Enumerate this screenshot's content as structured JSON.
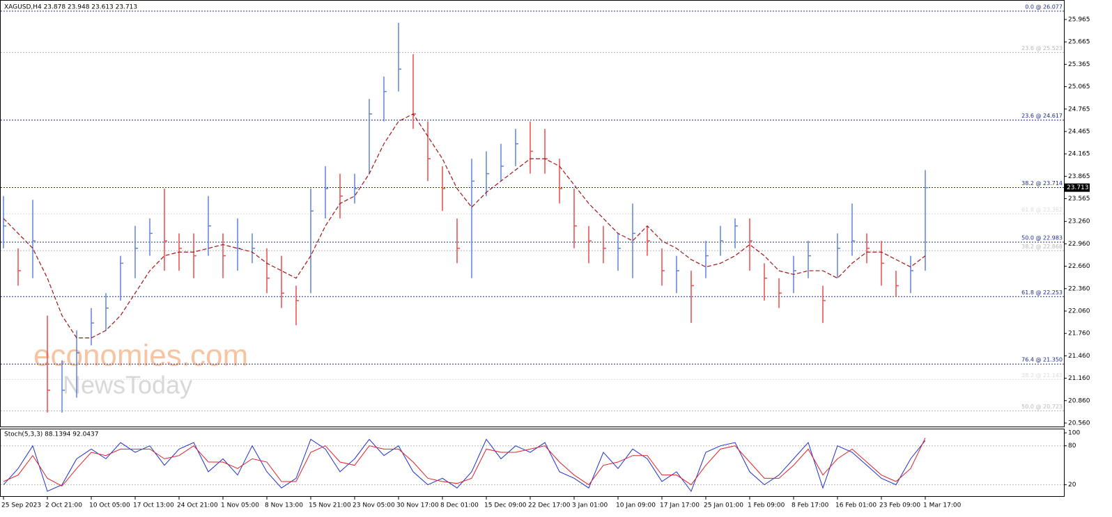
{
  "chart_data": [
    {
      "type": "ohlc",
      "title": "XAGUSD,H4 23.878 23.948 23.613 23.713",
      "high": [
        23.6,
        22.9,
        23.55,
        22.0,
        21.4,
        21.8,
        22.1,
        22.3,
        22.8,
        23.2,
        23.3,
        23.7,
        23.1,
        23.1,
        23.6,
        23.1,
        23.3,
        23.1,
        22.9,
        22.8,
        22.4,
        23.7,
        24.0,
        23.9,
        23.9,
        24.9,
        25.2,
        25.92,
        25.5,
        24.6,
        24.0,
        23.3,
        24.1,
        24.2,
        24.3,
        24.5,
        24.6,
        24.5,
        24.1,
        23.7,
        23.2,
        23.2,
        23.1,
        23.5,
        23.2,
        22.9,
        22.8,
        22.6,
        23.0,
        23.2,
        23.3,
        23.3,
        22.7,
        22.5,
        22.8,
        23.0,
        22.4,
        23.1,
        23.5,
        23.1,
        23.0,
        22.6,
        22.8,
        23.948
      ],
      "low": [
        22.9,
        22.4,
        22.5,
        20.7,
        20.7,
        20.9,
        21.6,
        21.8,
        22.2,
        22.5,
        22.8,
        22.6,
        22.6,
        22.5,
        22.8,
        22.5,
        22.6,
        22.7,
        22.3,
        22.1,
        21.87,
        22.3,
        23.3,
        23.3,
        23.5,
        23.9,
        24.6,
        25.0,
        24.5,
        23.8,
        23.4,
        22.7,
        22.5,
        23.6,
        23.8,
        24.0,
        23.9,
        23.9,
        23.5,
        22.9,
        22.7,
        22.7,
        22.6,
        22.5,
        22.8,
        22.4,
        22.3,
        21.9,
        22.5,
        22.8,
        22.9,
        22.6,
        22.2,
        22.1,
        22.3,
        22.5,
        21.9,
        22.5,
        22.8,
        22.7,
        22.4,
        22.25,
        22.3,
        22.6
      ],
      "close": [
        23.2,
        22.6,
        23.0,
        21.0,
        21.0,
        21.5,
        21.9,
        22.1,
        22.7,
        22.9,
        23.1,
        23.0,
        22.9,
        22.8,
        23.2,
        22.8,
        22.9,
        22.9,
        22.5,
        22.3,
        22.2,
        23.4,
        23.7,
        23.6,
        23.7,
        24.7,
        25.0,
        25.3,
        24.7,
        24.1,
        23.7,
        22.9,
        23.8,
        23.9,
        24.0,
        24.3,
        24.2,
        24.1,
        23.7,
        23.2,
        23.0,
        22.9,
        22.9,
        23.1,
        23.0,
        22.6,
        22.6,
        22.4,
        22.8,
        23.0,
        23.2,
        23.0,
        22.5,
        22.3,
        22.6,
        22.8,
        22.2,
        22.9,
        23.0,
        22.9,
        22.7,
        22.4,
        22.6,
        23.713
      ],
      "up_color": "#5f82d8",
      "down_color": "#ee4b4b",
      "ma": {
        "color": "#a01515",
        "values": [
          23.3,
          23.1,
          22.9,
          22.5,
          22.0,
          21.7,
          21.7,
          21.8,
          22.0,
          22.3,
          22.6,
          22.8,
          22.85,
          22.85,
          22.9,
          22.95,
          22.9,
          22.85,
          22.7,
          22.6,
          22.5,
          22.8,
          23.2,
          23.5,
          23.6,
          23.9,
          24.3,
          24.6,
          24.7,
          24.4,
          24.1,
          23.7,
          23.45,
          23.65,
          23.8,
          23.95,
          24.1,
          24.1,
          24.0,
          23.75,
          23.5,
          23.3,
          23.1,
          23.0,
          23.2,
          23.0,
          22.9,
          22.75,
          22.65,
          22.7,
          22.8,
          22.95,
          22.8,
          22.6,
          22.55,
          22.6,
          22.6,
          22.5,
          22.7,
          22.85,
          22.85,
          22.75,
          22.65,
          22.8
        ]
      },
      "ylim": [
        20.513,
        26.226
      ],
      "yticks": [
        {
          "value": 20.56,
          "label": "20.560"
        },
        {
          "value": 20.86,
          "label": "20.860"
        },
        {
          "value": 21.16,
          "label": "21.160"
        },
        {
          "value": 21.46,
          "label": "21.460"
        },
        {
          "value": 21.76,
          "label": "21.760"
        },
        {
          "value": 22.06,
          "label": "22.060"
        },
        {
          "value": 22.36,
          "label": "22.360"
        },
        {
          "value": 22.66,
          "label": "22.660"
        },
        {
          "value": 22.96,
          "label": "22.960"
        },
        {
          "value": 23.26,
          "label": "23.260"
        },
        23.565,
        23.865,
        24.165,
        24.465,
        24.765,
        25.065,
        25.365,
        25.665,
        25.965
      ],
      "levels": [
        {
          "label": "0.0 @ 26.077",
          "value": 26.077,
          "color": "#1c2a8a"
        },
        {
          "label": "23.6 @ 25.523",
          "value": 25.523,
          "color": "#b8b8b8"
        },
        {
          "label": "23.6 @ 24.617",
          "value": 24.617,
          "color": "#1c2a8a"
        },
        {
          "label": "38.2 @ 23.714",
          "value": 23.714,
          "color": "#1c2a8a"
        },
        {
          "label": "61.8 @ 23.362",
          "value": 23.362,
          "color": "#dcdcdc"
        },
        {
          "label": "50.0 @ 22.983",
          "value": 22.983,
          "color": "#1c2a8a"
        },
        {
          "label": "38.2 @ 22.868",
          "value": 22.868,
          "color": "#b8b8b8"
        },
        {
          "label": "61.8 @ 22.253",
          "value": 22.253,
          "color": "#1c2a8a"
        },
        {
          "label": "76.4 @ 21.350",
          "value": 21.35,
          "color": "#1c2a8a"
        },
        {
          "label": "38.2 @ 21.143",
          "value": 21.143,
          "color": "#dcdcdc"
        },
        {
          "label": "50.0 @ 20.723",
          "value": 20.723,
          "color": "#b8b8b8"
        }
      ],
      "last_price": 23.713,
      "watermark": [
        "economies.com",
        "NewsToday"
      ]
    },
    {
      "type": "line",
      "title": "Stoch(5,3,3) 88.1394 92.0437",
      "categories": [
        "25 Sep 2023",
        null,
        null,
        "2 Oct 21:00",
        null,
        null,
        "10 Oct 05:00",
        null,
        null,
        "17 Oct 13:00",
        null,
        null,
        "24 Oct 21:00",
        null,
        null,
        "1 Nov 05:00",
        null,
        null,
        "8 Nov 13:00",
        null,
        null,
        "15 Nov 21:00",
        null,
        null,
        "23 Nov 05:00",
        null,
        null,
        "30 Nov 17:00",
        null,
        null,
        "8 Dec 01:00",
        null,
        null,
        "15 Dec 09:00",
        null,
        null,
        "22 Dec 17:00",
        null,
        null,
        "3 Jan 01:00",
        null,
        null,
        "10 Jan 09:00",
        null,
        null,
        "17 Jan 17:00",
        null,
        null,
        "25 Jan 01:00",
        null,
        null,
        "1 Feb 09:00",
        null,
        null,
        "8 Feb 17:00",
        null,
        null,
        "16 Feb 01:00",
        null,
        null,
        "23 Feb 09:00",
        null,
        null,
        "1 Mar 17:00"
      ],
      "series": [
        {
          "color": "#1f2fd0",
          "values": [
            20,
            45,
            80,
            10,
            20,
            60,
            75,
            60,
            85,
            70,
            80,
            50,
            75,
            85,
            40,
            60,
            35,
            80,
            40,
            15,
            30,
            90,
            75,
            40,
            60,
            90,
            65,
            80,
            40,
            20,
            30,
            15,
            40,
            90,
            60,
            80,
            70,
            85,
            40,
            30,
            15,
            70,
            45,
            75,
            60,
            25,
            40,
            10,
            70,
            80,
            85,
            40,
            20,
            35,
            60,
            85,
            15,
            80,
            70,
            50,
            30,
            20,
            60,
            88.1394
          ]
        },
        {
          "color": "#e0202a",
          "values": [
            25,
            35,
            65,
            30,
            18,
            45,
            70,
            65,
            75,
            75,
            75,
            60,
            65,
            80,
            55,
            55,
            45,
            60,
            55,
            25,
            25,
            70,
            80,
            55,
            50,
            80,
            75,
            75,
            55,
            30,
            25,
            22,
            30,
            75,
            70,
            70,
            75,
            80,
            55,
            35,
            20,
            50,
            55,
            65,
            65,
            35,
            35,
            20,
            50,
            75,
            80,
            55,
            30,
            30,
            50,
            75,
            35,
            60,
            75,
            55,
            35,
            25,
            45,
            92.0437
          ]
        }
      ],
      "ylim": [
        2.5,
        105.4
      ],
      "yticks": [
        20,
        80,
        100
      ]
    }
  ]
}
